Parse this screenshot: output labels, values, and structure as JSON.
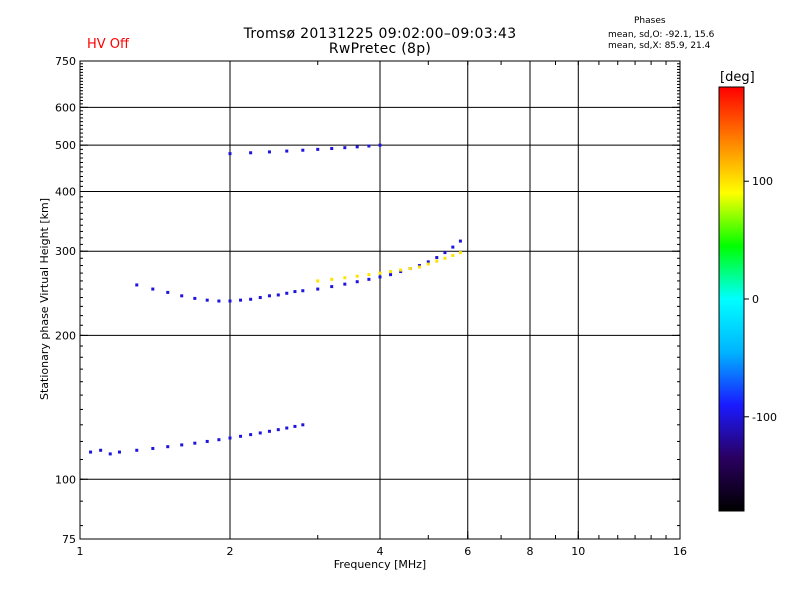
{
  "header": {
    "title": "Tromsø 20131225 09:02:00–09:03:43",
    "subtitle": "RwPretec (8p)",
    "hv_status": "HV Off",
    "hv_status_color": "#ff0000"
  },
  "stats": {
    "title": "Phases",
    "o_line": "mean, sd,O: -92.1, 15.6",
    "x_line": "mean, sd,X:  85.9, 21.4"
  },
  "chart_data": {
    "type": "scatter",
    "title": "Tromsø 20131225 09:02:00–09:03:43",
    "subtitle": "RwPretec (8p)",
    "xlabel": "Frequency [MHz]",
    "ylabel": "Stationary phase Virtual Height [km]",
    "x_scale": "log",
    "y_scale": "log",
    "xlim": [
      1,
      16
    ],
    "ylim": [
      75,
      750
    ],
    "x_ticks": [
      1,
      2,
      4,
      6,
      8,
      10,
      16
    ],
    "y_ticks": [
      75,
      100,
      200,
      300,
      400,
      500,
      600,
      750
    ],
    "grid_x": [
      2,
      4,
      6,
      8,
      10
    ],
    "grid_y": [
      100,
      200,
      300,
      400,
      500,
      600
    ],
    "colorbar": {
      "label": "[deg]",
      "range": [
        -180,
        180
      ],
      "ticks": [
        100,
        0,
        -100
      ],
      "colors": [
        "#000000",
        "#2a0060",
        "#1a1aff",
        "#00b4ff",
        "#00ffff",
        "#00ff00",
        "#ffff00",
        "#ff8000",
        "#ff0000"
      ]
    },
    "series": [
      {
        "trace": "E and F1 low-frequency trace",
        "points": [
          [
            1.05,
            114,
            -100
          ],
          [
            1.1,
            115,
            -100
          ],
          [
            1.15,
            113,
            -100
          ],
          [
            1.2,
            114,
            -100
          ],
          [
            1.3,
            115,
            -100
          ],
          [
            1.4,
            116,
            -100
          ],
          [
            1.5,
            117,
            -100
          ],
          [
            1.6,
            118,
            -100
          ],
          [
            1.7,
            119,
            -100
          ],
          [
            1.8,
            120,
            -100
          ],
          [
            1.9,
            121,
            -100
          ],
          [
            2.0,
            122,
            -100
          ],
          [
            2.1,
            123,
            -100
          ],
          [
            2.2,
            124,
            -100
          ],
          [
            2.3,
            125,
            -100
          ],
          [
            2.4,
            126,
            -100
          ],
          [
            2.5,
            127,
            -100
          ],
          [
            2.6,
            128,
            -100
          ],
          [
            2.7,
            129,
            -100
          ],
          [
            2.8,
            130,
            -100
          ]
        ]
      },
      {
        "trace": "F2 trace",
        "points": [
          [
            1.3,
            255,
            -100
          ],
          [
            1.4,
            250,
            -100
          ],
          [
            1.5,
            246,
            -100
          ],
          [
            1.6,
            242,
            -100
          ],
          [
            1.7,
            239,
            -100
          ],
          [
            1.8,
            237,
            -100
          ],
          [
            1.9,
            236,
            -100
          ],
          [
            2.0,
            236,
            -100
          ],
          [
            2.1,
            237,
            -100
          ],
          [
            2.2,
            238,
            -100
          ],
          [
            2.3,
            240,
            -100
          ],
          [
            2.4,
            242,
            -100
          ],
          [
            2.5,
            243,
            -100
          ],
          [
            2.6,
            245,
            -100
          ],
          [
            2.7,
            247,
            -100
          ],
          [
            2.8,
            248,
            -100
          ],
          [
            3.0,
            250,
            -100
          ],
          [
            3.2,
            253,
            -100
          ],
          [
            3.4,
            256,
            -100
          ],
          [
            3.6,
            259,
            -100
          ],
          [
            3.8,
            262,
            -100
          ],
          [
            4.0,
            265,
            -100
          ],
          [
            4.2,
            268,
            -100
          ],
          [
            4.4,
            272,
            -100
          ],
          [
            4.6,
            276,
            -100
          ],
          [
            4.8,
            280,
            -100
          ],
          [
            5.0,
            285,
            -100
          ],
          [
            5.2,
            291,
            -100
          ],
          [
            5.4,
            298,
            -100
          ],
          [
            5.6,
            306,
            -100
          ],
          [
            5.8,
            315,
            -100
          ]
        ]
      },
      {
        "trace": "F2 trace (phase near 100 deg)",
        "points": [
          [
            3.0,
            260,
            100
          ],
          [
            3.2,
            262,
            100
          ],
          [
            3.4,
            264,
            100
          ],
          [
            3.6,
            266,
            100
          ],
          [
            3.8,
            268,
            100
          ],
          [
            4.0,
            270,
            100
          ],
          [
            4.2,
            272,
            100
          ],
          [
            4.4,
            274,
            100
          ],
          [
            4.6,
            276,
            100
          ],
          [
            4.8,
            278,
            100
          ],
          [
            5.0,
            282,
            100
          ],
          [
            5.2,
            286,
            100
          ],
          [
            5.4,
            290,
            100
          ],
          [
            5.6,
            294,
            100
          ],
          [
            5.8,
            298,
            100
          ]
        ]
      },
      {
        "trace": "Upper returns",
        "points": [
          [
            2.0,
            480,
            -100
          ],
          [
            2.2,
            482,
            -100
          ],
          [
            2.4,
            484,
            -100
          ],
          [
            2.6,
            486,
            -100
          ],
          [
            2.8,
            488,
            -100
          ],
          [
            3.0,
            490,
            -100
          ],
          [
            3.2,
            492,
            -100
          ],
          [
            3.4,
            494,
            -100
          ],
          [
            3.6,
            496,
            -100
          ],
          [
            3.8,
            498,
            -100
          ],
          [
            4.0,
            500,
            -100
          ]
        ]
      }
    ]
  },
  "legend": {
    "colorbar_unit": "[deg]"
  }
}
